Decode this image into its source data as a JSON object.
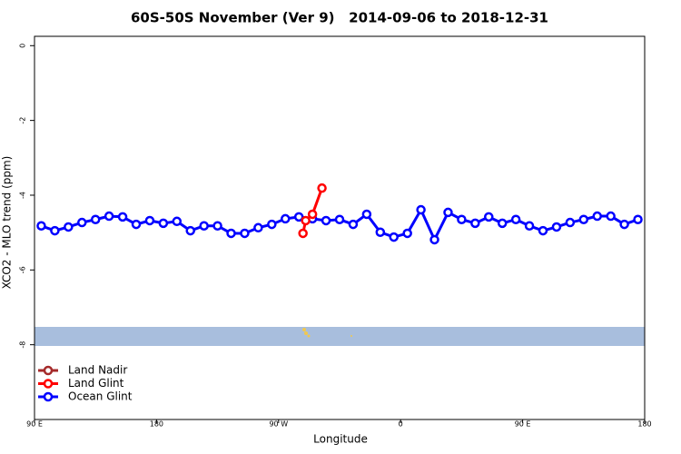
{
  "chart_data": {
    "type": "line",
    "title": "60S-50S November (Ver 9)   2014-09-06 to 2018-12-31",
    "x_label": "Longitude",
    "y_label": "XCO2 - MLO trend (ppm)",
    "xlim": [
      -270,
      180
    ],
    "xticks": [
      {
        "value": -270,
        "label": "90 E"
      },
      {
        "value": -180,
        "label": "180"
      },
      {
        "value": -90,
        "label": "90 W"
      },
      0,
      {
        "value": 90,
        "label": "90 E"
      },
      180
    ],
    "ylim": [
      -10,
      0.25
    ],
    "yticks": [
      0,
      -2,
      -4,
      -6,
      -8
    ],
    "legend": "bottom-left",
    "series": [
      {
        "name": "Land Nadir",
        "color": "#a52a2a",
        "x": [],
        "values": []
      },
      {
        "name": "Land Glint",
        "color": "#ff0000",
        "x": [
          -72,
          -70,
          -65,
          -58
        ],
        "values": [
          -5.02,
          -4.68,
          -4.51,
          -3.81
        ]
      },
      {
        "name": "Ocean Glint",
        "color": "#0000ff",
        "x": [
          -265,
          -255,
          -245,
          -235,
          -225,
          -215,
          -205,
          -195,
          -185,
          -175,
          -165,
          -155,
          -145,
          -135,
          -125,
          -115,
          -105,
          -95,
          -85,
          -75,
          -65,
          -55,
          -45,
          -35,
          -25,
          -15,
          -5,
          5,
          15,
          25,
          35,
          45,
          55,
          65,
          75,
          85,
          95,
          105,
          115,
          125,
          135,
          145,
          155,
          165,
          175
        ],
        "values": [
          -4.82,
          -4.95,
          -4.85,
          -4.73,
          -4.65,
          -4.56,
          -4.58,
          -4.78,
          -4.68,
          -4.75,
          -4.7,
          -4.95,
          -4.82,
          -4.82,
          -5.02,
          -5.02,
          -4.87,
          -4.78,
          -4.63,
          -4.58,
          -4.63,
          -4.68,
          -4.65,
          -4.78,
          -4.51,
          -4.99,
          -5.12,
          -5.02,
          -4.39,
          -5.19,
          -4.46,
          -4.65,
          -4.75,
          -4.58,
          -4.75,
          -4.65,
          -4.82,
          -4.95,
          -4.85,
          -4.73,
          -4.65,
          -4.56,
          -4.56,
          -4.78,
          -4.65
        ]
      }
    ]
  }
}
